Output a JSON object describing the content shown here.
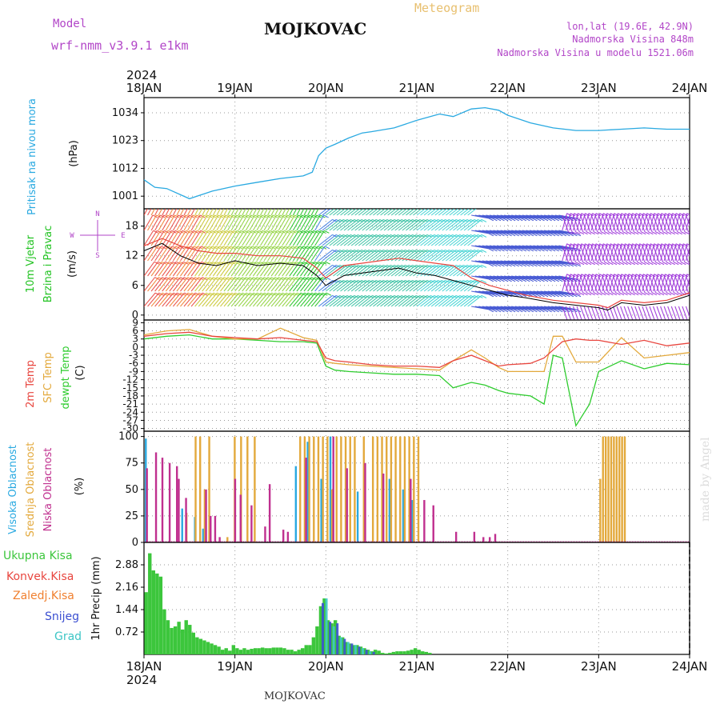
{
  "header": {
    "model_label": "Model",
    "model_name": "wrf-nmm_v3.9.1 e1km",
    "station": "MOJKOVAC",
    "product": "Meteogram",
    "lonlat": "lon,lat (19.6E, 42.9N)",
    "elevation": "Nadmorska Visina 848m",
    "model_elevation": "Nadmorska Visina u modelu 1521.06m",
    "year_top": "2024",
    "year_bottom": "2024",
    "footer_station": "MOJKOVAC",
    "credit": "made by Angel"
  },
  "colors": {
    "pressure": "#29a9e1",
    "wind_label": "#22c322",
    "temp2m": "#e8463f",
    "sfc_temp": "#e3a93c",
    "dewpoint": "#2ecc2e",
    "cloud_high": "#29a9e1",
    "cloud_mid": "#e3a93c",
    "cloud_low": "#c0308f",
    "precip_total": "#3cc63c",
    "precip_conv": "#e8463f",
    "precip_frz": "#f08030",
    "precip_snow": "#3b4fd1",
    "precip_grad": "#3ec6c6",
    "header_purple": "#b246c8",
    "header_orange": "#e8c070"
  },
  "wind_compass": {
    "n": "N",
    "e": "E",
    "w": "W",
    "s": "S"
  },
  "chart_data": [
    {
      "type": "line",
      "panel": "pressure",
      "ylabel_lines": [
        "Pritisak na nivou mora",
        "(hPa)"
      ],
      "yticks": [
        1001,
        1012,
        1023,
        1034
      ],
      "ylim": [
        996,
        1040
      ],
      "x_days": [
        "18JAN",
        "19JAN",
        "20JAN",
        "21JAN",
        "22JAN",
        "23JAN",
        "24JAN"
      ],
      "x": [
        0,
        0.12,
        0.25,
        0.5,
        0.75,
        1.0,
        1.25,
        1.5,
        1.75,
        1.85,
        1.92,
        2.0,
        2.1,
        2.25,
        2.4,
        2.5,
        2.75,
        3.0,
        3.25,
        3.4,
        3.6,
        3.75,
        3.9,
        4.0,
        4.25,
        4.5,
        4.75,
        5.0,
        5.25,
        5.5,
        5.75,
        6.0
      ],
      "series": [
        {
          "values": [
            1007.5,
            1004.5,
            1004,
            1000,
            1003,
            1005,
            1006.5,
            1008,
            1009,
            1010.5,
            1017,
            1020,
            1021.5,
            1024,
            1026,
            1026.5,
            1028,
            1031,
            1033.5,
            1032.5,
            1035.5,
            1036,
            1035,
            1033,
            1030,
            1028,
            1027,
            1027,
            1027.5,
            1028,
            1027.5,
            1027.5
          ]
        }
      ]
    },
    {
      "type": "line",
      "panel": "wind",
      "ylabel_lines": [
        "10m Vjetar",
        "Brzina i Pravac",
        "(m/s)"
      ],
      "yticks": [
        0,
        6,
        12,
        18
      ],
      "ylim": [
        -1,
        21.5
      ],
      "x": [
        0,
        0.2,
        0.4,
        0.6,
        0.8,
        1.0,
        1.25,
        1.5,
        1.75,
        1.9,
        2.0,
        2.2,
        2.4,
        2.6,
        2.8,
        3.0,
        3.2,
        3.4,
        3.6,
        3.8,
        4.0,
        4.2,
        4.5,
        4.75,
        5.0,
        5.1,
        5.25,
        5.5,
        5.75,
        6.0
      ],
      "series": [
        {
          "name": "mean",
          "values": [
            13,
            14.5,
            12,
            10.5,
            10,
            11,
            10,
            10.5,
            10,
            8,
            6,
            8,
            8.5,
            9,
            9.5,
            8.5,
            8,
            7,
            6,
            5,
            4,
            3.5,
            2.5,
            2,
            1.5,
            1,
            2.5,
            2,
            2.5,
            4
          ]
        },
        {
          "name": "gust",
          "values": [
            14,
            15.5,
            14,
            13,
            12.5,
            12.5,
            12,
            12,
            11.5,
            9.5,
            7.5,
            10,
            10.5,
            11,
            11.5,
            11,
            10.5,
            10,
            7.5,
            6,
            5,
            4,
            3,
            2.5,
            2,
            1.5,
            3,
            2.5,
            3,
            4.5
          ]
        }
      ]
    },
    {
      "type": "line",
      "panel": "temperature",
      "ylabel_lines": [
        "2m Temp",
        "SFC Temp",
        "dewpt Temp",
        "(C)"
      ],
      "yticks": [
        -30,
        -27,
        -24,
        -21,
        -18,
        -15,
        -12,
        -9,
        -6,
        -3,
        0,
        3,
        6,
        9
      ],
      "ylim": [
        -31,
        10
      ],
      "x": [
        0,
        0.25,
        0.5,
        0.75,
        1.0,
        1.25,
        1.5,
        1.75,
        1.9,
        2.0,
        2.1,
        2.25,
        2.5,
        2.75,
        3.0,
        3.25,
        3.4,
        3.6,
        3.75,
        3.9,
        4.0,
        4.25,
        4.4,
        4.5,
        4.6,
        4.75,
        4.9,
        5.0,
        5.25,
        5.5,
        5.75,
        6.0
      ],
      "series": [
        {
          "name": "2m Temp",
          "values": [
            4,
            5,
            5.5,
            4,
            3.5,
            3,
            3.5,
            2.5,
            2,
            -4,
            -5,
            -5.5,
            -6.5,
            -7,
            -7,
            -7.5,
            -5,
            -3,
            -5,
            -7,
            -6.5,
            -6,
            -4,
            -1,
            2,
            3,
            2.5,
            2.5,
            1,
            2.5,
            0.5,
            1.5
          ]
        },
        {
          "name": "SFC Temp",
          "values": [
            4.5,
            6,
            6.5,
            4,
            3,
            3,
            7,
            3.5,
            2.5,
            -5.5,
            -6,
            -6.5,
            -7,
            -7.5,
            -8,
            -8.5,
            -5,
            -1,
            -4,
            -7.5,
            -9,
            -9,
            -9,
            4,
            4,
            -5.5,
            -5.5,
            -5.5,
            3.5,
            -4,
            -3,
            -2
          ]
        },
        {
          "name": "dewpt Temp",
          "values": [
            3,
            4,
            4.5,
            3,
            3,
            2.5,
            2,
            2,
            1.5,
            -7,
            -8.5,
            -9,
            -9.5,
            -10,
            -10,
            -10.5,
            -15,
            -13,
            -14,
            -16,
            -17,
            -18,
            -21,
            -3,
            -4,
            -29,
            -21,
            -9,
            -5,
            -8,
            -6,
            -6.5
          ]
        }
      ]
    },
    {
      "type": "bar",
      "panel": "cloud",
      "ylabel_lines": [
        "Visoka Oblacnost",
        "Srednja Oblacnost",
        "Niska Oblacnost",
        "(%)"
      ],
      "yticks": [
        0,
        25,
        50,
        75,
        100
      ],
      "ylim": [
        0,
        105
      ],
      "series": [
        {
          "name": "Visoka Oblacnost",
          "x": [
            0.02,
            0.42,
            0.56,
            0.65,
            1.67,
            1.8,
            1.95,
            2.05,
            2.35,
            2.42,
            2.7,
            2.85,
            2.95
          ],
          "values": [
            98,
            32,
            24,
            13,
            72,
            95,
            60,
            100,
            48,
            25,
            60,
            50,
            40
          ]
        },
        {
          "name": "Srednja Oblacnost",
          "x": [
            0.45,
            0.55,
            0.6,
            0.65,
            0.7,
            0.9,
            0.98,
            1.05,
            1.12,
            1.2,
            1.7,
            1.75,
            1.8,
            1.85,
            1.9,
            1.95,
            2.0,
            2.05,
            2.1,
            2.15,
            2.2,
            2.25,
            2.3,
            2.4,
            2.5,
            2.55,
            2.6,
            2.65,
            2.7,
            2.75,
            2.8,
            2.85,
            2.9,
            2.95,
            3.0,
            5.0,
            5.03,
            5.06,
            5.09,
            5.12,
            5.15,
            5.18,
            5.21,
            5.24,
            5.27
          ],
          "values": [
            28,
            100,
            100,
            50,
            100,
            5,
            100,
            100,
            100,
            100,
            100,
            100,
            100,
            100,
            100,
            100,
            100,
            50,
            100,
            100,
            100,
            100,
            100,
            100,
            100,
            100,
            100,
            100,
            100,
            100,
            100,
            100,
            100,
            100,
            100,
            60,
            100,
            100,
            100,
            100,
            100,
            100,
            100,
            100,
            100
          ]
        },
        {
          "name": "Niska Oblacnost",
          "x": [
            0.05,
            0.15,
            0.22,
            0.3,
            0.38,
            0.4,
            0.48,
            0.7,
            0.75,
            0.8,
            0.85,
            1.02,
            1.08,
            1.2,
            1.35,
            1.4,
            1.55,
            1.6,
            1.8,
            2.1,
            2.25,
            2.45,
            2.65,
            2.95,
            3.1,
            3.2,
            3.45,
            3.65,
            3.75,
            3.82,
            3.88
          ],
          "values": [
            70,
            85,
            80,
            75,
            72,
            60,
            42,
            50,
            25,
            25,
            5,
            60,
            45,
            35,
            15,
            55,
            12,
            10,
            80,
            100,
            70,
            75,
            65,
            60,
            40,
            35,
            10,
            10,
            5,
            5,
            8
          ]
        }
      ]
    },
    {
      "type": "bar",
      "panel": "precip",
      "ylabel_lines": [
        "1hr Precip (mm)"
      ],
      "legend": [
        "Ukupna Kisa",
        "Konvek.Kisa",
        "Zaledj.Kisa",
        "Snijeg",
        "Grad"
      ],
      "yticks": [
        0.72,
        1.44,
        2.16,
        2.88
      ],
      "ylim": [
        0,
        3.6
      ],
      "series": [
        {
          "name": "Ukupna Kisa",
          "x": [
            0.0,
            0.04,
            0.08,
            0.12,
            0.16,
            0.2,
            0.24,
            0.28,
            0.32,
            0.36,
            0.4,
            0.44,
            0.48,
            0.52,
            0.56,
            0.6,
            0.64,
            0.68,
            0.72,
            0.76,
            0.8,
            0.84,
            0.88,
            0.92,
            0.96,
            1.0,
            1.04,
            1.08,
            1.12,
            1.16,
            1.2,
            1.24,
            1.28,
            1.32,
            1.36,
            1.4,
            1.44,
            1.48,
            1.52,
            1.56,
            1.6,
            1.64,
            1.68,
            1.72,
            1.76,
            1.8,
            1.84,
            1.88,
            1.92,
            1.96,
            2.0,
            2.04,
            2.08,
            2.12,
            2.16,
            2.2,
            2.24,
            2.28,
            2.32,
            2.36,
            2.4,
            2.44,
            2.48,
            2.52,
            2.56,
            2.6,
            2.64,
            2.68,
            2.72,
            2.76,
            2.8,
            2.84,
            2.88,
            2.92,
            2.96,
            3.0,
            3.04,
            3.08,
            3.12
          ],
          "values": [
            2.0,
            3.25,
            2.7,
            2.6,
            2.5,
            1.45,
            1.1,
            0.85,
            0.9,
            1.05,
            0.8,
            1.1,
            0.95,
            0.7,
            0.55,
            0.5,
            0.45,
            0.4,
            0.35,
            0.3,
            0.25,
            0.15,
            0.2,
            0.12,
            0.3,
            0.2,
            0.15,
            0.2,
            0.15,
            0.18,
            0.2,
            0.2,
            0.22,
            0.2,
            0.2,
            0.22,
            0.22,
            0.22,
            0.2,
            0.15,
            0.15,
            0.1,
            0.15,
            0.2,
            0.3,
            0.3,
            0.55,
            0.9,
            1.55,
            1.8,
            1.1,
            1.0,
            1.1,
            0.6,
            0.55,
            0.4,
            0.35,
            0.3,
            0.3,
            0.25,
            0.2,
            0.15,
            0.1,
            0.15,
            0.12,
            0.05,
            0.03,
            0.05,
            0.08,
            0.1,
            0.1,
            0.1,
            0.12,
            0.15,
            0.2,
            0.15,
            0.1,
            0.08,
            0.05
          ]
        },
        {
          "name": "Snijeg",
          "x": [
            1.94,
            1.98,
            2.02,
            2.06,
            2.1,
            2.14,
            2.18,
            2.22,
            2.26,
            2.3,
            2.34,
            2.38,
            2.42,
            2.46,
            2.5
          ],
          "values": [
            1.65,
            1.8,
            1.05,
            0.9,
            1.0,
            0.55,
            0.5,
            0.4,
            0.35,
            0.3,
            0.25,
            0.2,
            0.15,
            0.1,
            0.08
          ]
        }
      ]
    }
  ]
}
